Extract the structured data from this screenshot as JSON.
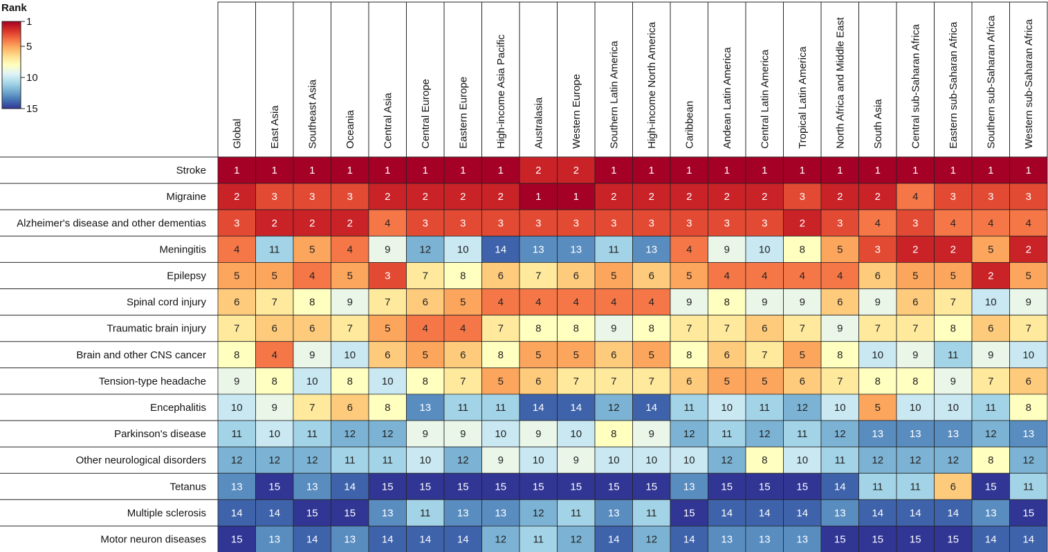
{
  "chart_data": {
    "type": "heatmap",
    "legend": {
      "title": "Rank",
      "ticks": [
        1,
        5,
        10,
        15
      ],
      "colors": [
        "#a50026",
        "#d73027",
        "#f46d43",
        "#fdae61",
        "#fee090",
        "#ffffbf",
        "#e0f3f8",
        "#abd9e9",
        "#74add1",
        "#4575b4",
        "#313695"
      ]
    },
    "columns": [
      "Global",
      "East Asia",
      "Southeast Asia",
      "Oceania",
      "Central Asia",
      "Central Europe",
      "Eastern Europe",
      "High-income Asia Pacific",
      "Australasia",
      "Western Europe",
      "Southern Latin America",
      "High-income North America",
      "Caribbean",
      "Andean Latin America",
      "Central Latin America",
      "Tropical Latin America",
      "North Africa and Middle East",
      "South Asia",
      "Central sub-Saharan Africa",
      "Eastern sub-Saharan Africa",
      "Southern sub-Saharan Africa",
      "Western sub-Saharan Africa"
    ],
    "rows": [
      {
        "name": "Stroke",
        "values": [
          1,
          1,
          1,
          1,
          1,
          1,
          1,
          1,
          2,
          2,
          1,
          1,
          1,
          1,
          1,
          1,
          1,
          1,
          1,
          1,
          1,
          1
        ]
      },
      {
        "name": "Migraine",
        "values": [
          2,
          3,
          3,
          3,
          2,
          2,
          2,
          2,
          1,
          1,
          2,
          2,
          2,
          2,
          2,
          3,
          2,
          2,
          4,
          3,
          3,
          3
        ]
      },
      {
        "name": "Alzheimer's disease and other dementias",
        "values": [
          3,
          2,
          2,
          2,
          4,
          3,
          3,
          3,
          3,
          3,
          3,
          3,
          3,
          3,
          3,
          2,
          3,
          4,
          3,
          4,
          4,
          4
        ]
      },
      {
        "name": "Meningitis",
        "values": [
          4,
          11,
          5,
          4,
          9,
          12,
          10,
          14,
          13,
          13,
          11,
          13,
          4,
          9,
          10,
          8,
          5,
          3,
          2,
          2,
          5,
          2
        ]
      },
      {
        "name": "Epilepsy",
        "values": [
          5,
          5,
          4,
          5,
          3,
          7,
          8,
          6,
          7,
          6,
          5,
          6,
          5,
          4,
          4,
          4,
          4,
          6,
          5,
          5,
          2,
          5
        ]
      },
      {
        "name": "Spinal cord injury",
        "values": [
          6,
          7,
          8,
          9,
          7,
          6,
          5,
          4,
          4,
          4,
          4,
          4,
          9,
          8,
          9,
          9,
          6,
          9,
          6,
          7,
          10,
          9
        ]
      },
      {
        "name": "Traumatic brain injury",
        "values": [
          7,
          6,
          6,
          7,
          5,
          4,
          4,
          7,
          8,
          8,
          9,
          8,
          7,
          7,
          6,
          7,
          9,
          7,
          7,
          8,
          6,
          7
        ]
      },
      {
        "name": "Brain and other CNS cancer",
        "values": [
          8,
          4,
          9,
          10,
          6,
          5,
          6,
          8,
          5,
          5,
          6,
          5,
          8,
          6,
          7,
          5,
          8,
          10,
          9,
          11,
          9,
          10
        ]
      },
      {
        "name": "Tension-type headache",
        "values": [
          9,
          8,
          10,
          8,
          10,
          8,
          7,
          5,
          6,
          7,
          7,
          7,
          6,
          5,
          5,
          6,
          7,
          8,
          8,
          9,
          7,
          6
        ]
      },
      {
        "name": "Encephalitis",
        "values": [
          10,
          9,
          7,
          6,
          8,
          13,
          11,
          11,
          14,
          14,
          12,
          14,
          11,
          10,
          11,
          12,
          10,
          5,
          10,
          10,
          11,
          8
        ]
      },
      {
        "name": "Parkinson's disease",
        "values": [
          11,
          10,
          11,
          12,
          12,
          9,
          9,
          10,
          9,
          10,
          8,
          9,
          12,
          11,
          12,
          11,
          12,
          13,
          13,
          13,
          12,
          13
        ]
      },
      {
        "name": "Other neurological disorders",
        "values": [
          12,
          12,
          12,
          11,
          11,
          10,
          12,
          9,
          10,
          9,
          10,
          10,
          10,
          12,
          8,
          10,
          11,
          12,
          12,
          12,
          8,
          12
        ]
      },
      {
        "name": "Tetanus",
        "values": [
          13,
          15,
          13,
          14,
          15,
          15,
          15,
          15,
          15,
          15,
          15,
          15,
          13,
          15,
          15,
          15,
          14,
          11,
          11,
          6,
          15,
          11
        ]
      },
      {
        "name": "Multiple sclerosis",
        "values": [
          14,
          14,
          15,
          15,
          13,
          11,
          13,
          13,
          12,
          11,
          13,
          11,
          15,
          14,
          14,
          14,
          13,
          14,
          14,
          14,
          13,
          15
        ]
      },
      {
        "name": "Motor neuron diseases",
        "values": [
          15,
          13,
          14,
          13,
          14,
          14,
          14,
          12,
          11,
          12,
          14,
          12,
          14,
          13,
          13,
          13,
          15,
          15,
          15,
          15,
          14,
          14
        ]
      }
    ]
  }
}
